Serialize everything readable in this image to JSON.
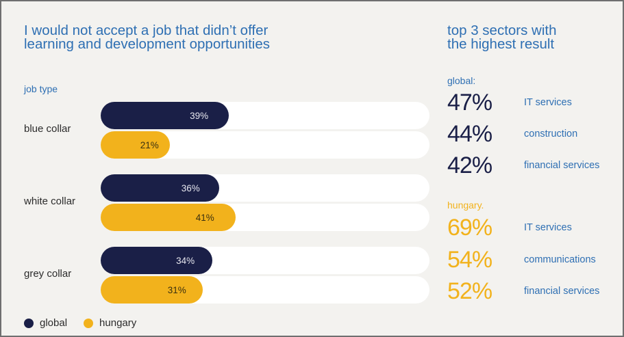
{
  "title_lines": [
    "I would not accept a job that didn’t offer",
    "learning and development opportunities"
  ],
  "job_type_label": "job type",
  "colors": {
    "global": "#1a1f47",
    "hungary": "#f2b21c",
    "accent": "#2e6fb3"
  },
  "chart_data": {
    "type": "bar",
    "orientation": "horizontal",
    "categories": [
      "blue collar",
      "white collar",
      "grey collar"
    ],
    "series": [
      {
        "name": "global",
        "values": [
          39,
          36,
          34
        ],
        "labels": [
          "39%",
          "36%",
          "34%"
        ]
      },
      {
        "name": "hungary",
        "values": [
          21,
          41,
          31
        ],
        "labels": [
          "21%",
          "41%",
          "31%"
        ]
      }
    ],
    "xlim": [
      0,
      100
    ],
    "unit": "%",
    "legend_position": "bottom-left"
  },
  "legend": {
    "global": "global",
    "hungary": "hungary"
  },
  "right_panel": {
    "title_lines": [
      "top 3 sectors with",
      "the highest result"
    ],
    "global_label": "global:",
    "global_sectors": [
      {
        "pct": "47%",
        "name": "IT services"
      },
      {
        "pct": "44%",
        "name": "construction"
      },
      {
        "pct": "42%",
        "name": "financial services"
      }
    ],
    "hungary_label": "hungary.",
    "hungary_sectors": [
      {
        "pct": "69%",
        "name": "IT services"
      },
      {
        "pct": "54%",
        "name": "communications"
      },
      {
        "pct": "52%",
        "name": "financial services"
      }
    ]
  }
}
